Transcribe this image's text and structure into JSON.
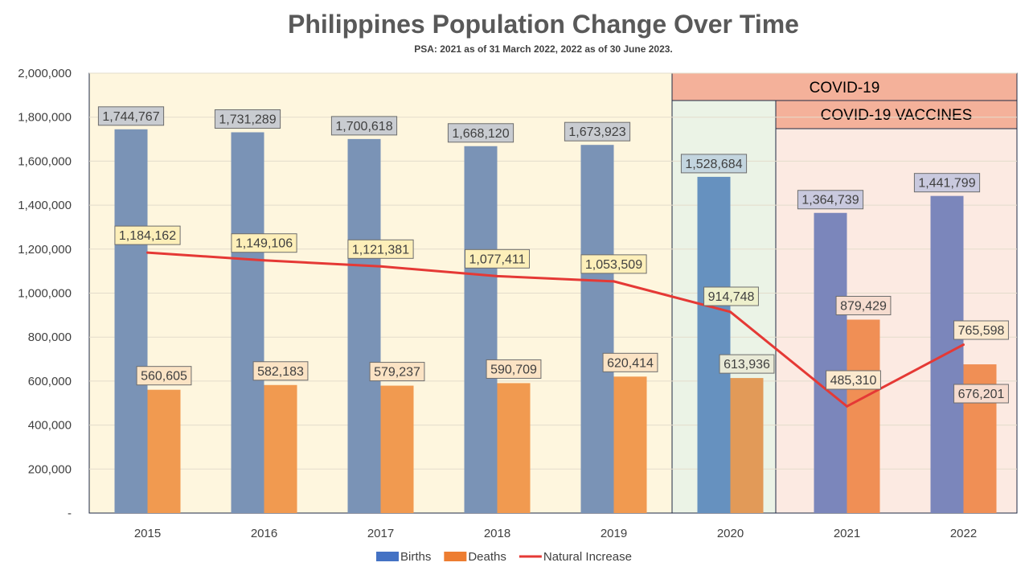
{
  "chart_data": {
    "type": "bar",
    "title": "Philippines Population Change Over Time",
    "subtitle": "PSA: 2021 as of 31 March 2022, 2022 as of 30 June 2023.",
    "categories": [
      "2015",
      "2016",
      "2017",
      "2018",
      "2019",
      "2020",
      "2021",
      "2022"
    ],
    "series": [
      {
        "name": "Births",
        "kind": "bar",
        "color": "#4472C4",
        "values": [
          1744767,
          1731289,
          1700618,
          1668120,
          1673923,
          1528684,
          1364739,
          1441799
        ]
      },
      {
        "name": "Deaths",
        "kind": "bar",
        "color": "#ED7D31",
        "values": [
          560605,
          582183,
          579237,
          590709,
          620414,
          613936,
          879429,
          676201
        ]
      },
      {
        "name": "Natural Increase",
        "kind": "line",
        "color": "#E53935",
        "values": [
          1184162,
          1149106,
          1121381,
          1077411,
          1053509,
          914748,
          485310,
          765598
        ]
      }
    ],
    "data_labels": {
      "births": [
        "1,744,767",
        "1,731,289",
        "1,700,618",
        "1,668,120",
        "1,673,923",
        "1,528,684",
        "1,364,739",
        "1,441,799"
      ],
      "deaths": [
        "560,605",
        "582,183",
        "579,237",
        "590,709",
        "620,414",
        "613,936",
        "879,429",
        "676,201"
      ],
      "natural_increase": [
        "1,184,162",
        "1,149,106",
        "1,121,381",
        "1,077,411",
        "1,053,509",
        "914,748",
        "485,310",
        "765,598"
      ]
    },
    "ylim": [
      0,
      2000000
    ],
    "yticks": [
      0,
      200000,
      400000,
      600000,
      800000,
      1000000,
      1200000,
      1400000,
      1600000,
      1800000,
      2000000
    ],
    "ytick_labels": [
      "-",
      "200,000",
      "400,000",
      "600,000",
      "800,000",
      "1,000,000",
      "1,200,000",
      "1,400,000",
      "1,600,000",
      "1,800,000",
      "2,000,000"
    ],
    "grid": true,
    "legend_position": "bottom",
    "annotations": {
      "covid": "COVID-19",
      "vaccines": "COVID-19 VACCINES"
    },
    "band_colors": {
      "pre_covid": "#FEF6DE",
      "covid_2020": "#EBF3E6",
      "vaccines": "#FCEAE2",
      "band_header": "#F4B19A"
    }
  }
}
